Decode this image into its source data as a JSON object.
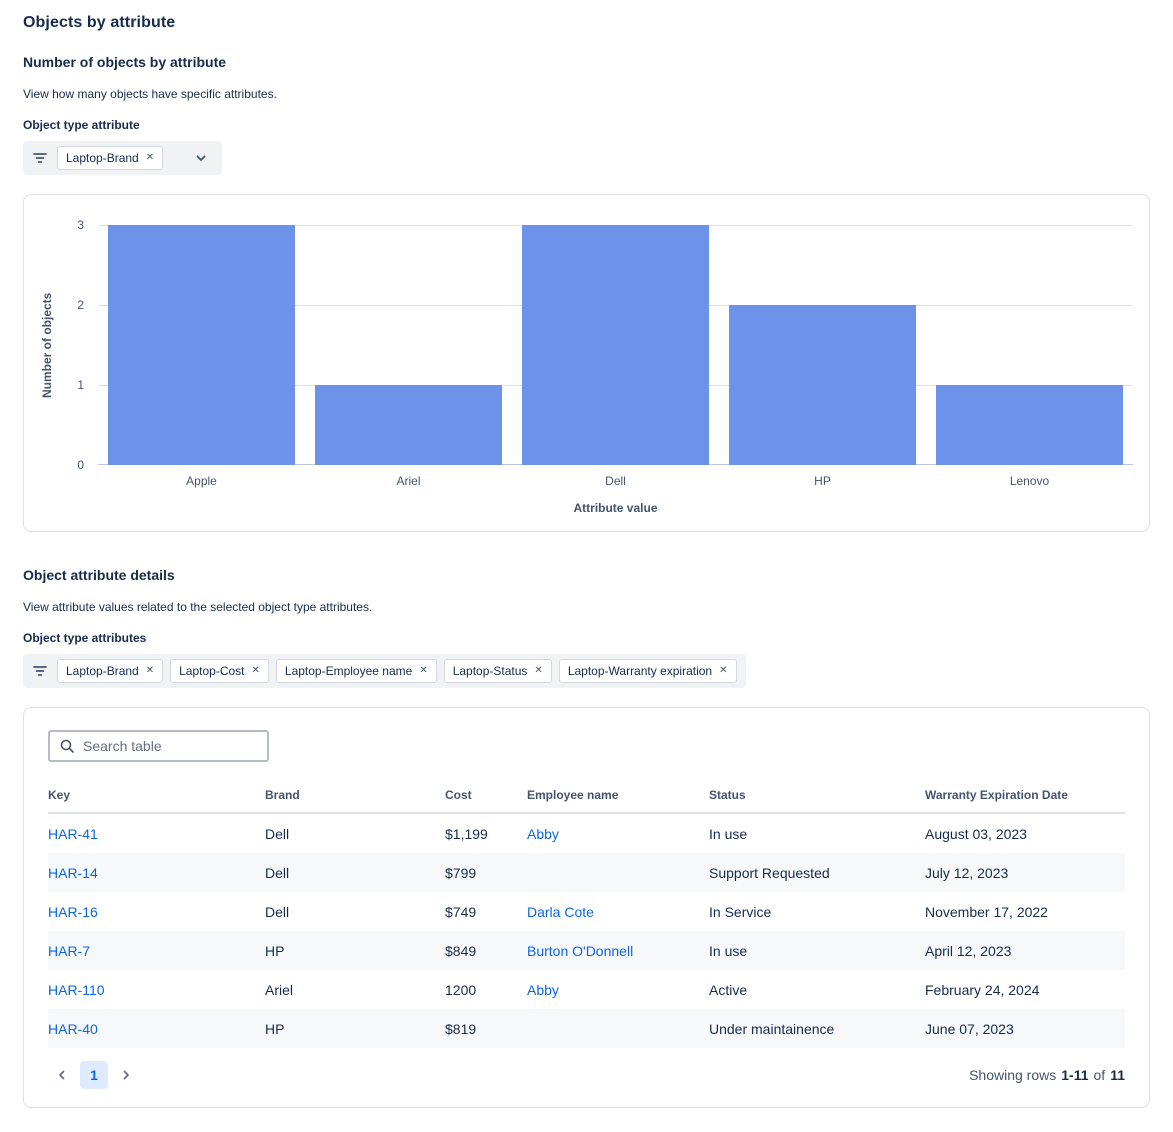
{
  "page": {
    "title": "Objects by attribute"
  },
  "icons": {
    "remove": "✕"
  },
  "chart_section": {
    "heading": "Number of objects by attribute",
    "description": "View how many objects have specific attributes.",
    "filter_label": "Object type attribute",
    "filter_tags": [
      {
        "label": "Laptop-Brand"
      }
    ]
  },
  "chart_data": {
    "type": "bar",
    "title": "",
    "categories": [
      "Apple",
      "Ariel",
      "Dell",
      "HP",
      "Lenovo"
    ],
    "values": [
      3,
      1,
      3,
      2,
      1
    ],
    "xlabel": "Attribute value",
    "ylabel": "Number of objects",
    "ylim": [
      0,
      3
    ],
    "yticks": [
      0,
      1,
      2,
      3
    ],
    "bar_color": "#6C92E9",
    "grid": true,
    "legend": "none"
  },
  "details_section": {
    "heading": "Object attribute details",
    "description": "View attribute values related to the selected object type attributes.",
    "filter_label": "Object type attributes",
    "filter_tags": [
      {
        "label": "Laptop-Brand"
      },
      {
        "label": "Laptop-Cost"
      },
      {
        "label": "Laptop-Employee name"
      },
      {
        "label": "Laptop-Status"
      },
      {
        "label": "Laptop-Warranty expiration"
      }
    ]
  },
  "table": {
    "search_placeholder": "Search table",
    "columns": [
      "Key",
      "Brand",
      "Cost",
      "Employee name",
      "Status",
      "Warranty Expiration Date"
    ],
    "rows": [
      {
        "key": "HAR-41",
        "brand": "Dell",
        "cost": "$1,199",
        "employee": "Abby",
        "status": "In use",
        "warranty": "August 03, 2023"
      },
      {
        "key": "HAR-14",
        "brand": "Dell",
        "cost": "$799",
        "employee": "",
        "status": "Support Requested",
        "warranty": "July 12, 2023"
      },
      {
        "key": "HAR-16",
        "brand": "Dell",
        "cost": "$749",
        "employee": "Darla Cote",
        "status": "In Service",
        "warranty": "November 17, 2022"
      },
      {
        "key": "HAR-7",
        "brand": "HP",
        "cost": "$849",
        "employee": "Burton O'Donnell",
        "status": "In use",
        "warranty": "April 12, 2023"
      },
      {
        "key": "HAR-110",
        "brand": "Ariel",
        "cost": "1200",
        "employee": "Abby",
        "status": "Active",
        "warranty": "February 24, 2024"
      },
      {
        "key": "HAR-40",
        "brand": "HP",
        "cost": "$819",
        "employee": "",
        "status": "Under maintainence",
        "warranty": "June 07, 2023"
      }
    ],
    "pagination": {
      "current_page": "1",
      "summary_prefix": "Showing rows",
      "summary_range": "1-11",
      "summary_of": "of",
      "summary_total": "11"
    }
  }
}
